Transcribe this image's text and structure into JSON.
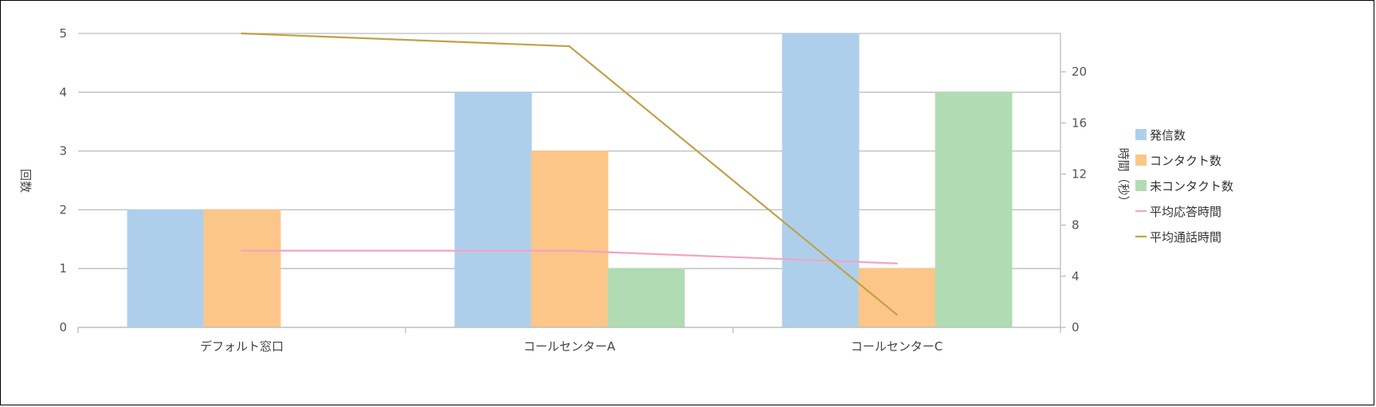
{
  "chart_data": {
    "type": "bar",
    "categories": [
      "デフォルト窓口",
      "コールセンターA",
      "コールセンターC"
    ],
    "series": [
      {
        "name": "発信数",
        "kind": "bar",
        "axis": "left",
        "color": "#aecfeb",
        "values": [
          2,
          4,
          5
        ]
      },
      {
        "name": "コンタクト数",
        "kind": "bar",
        "axis": "left",
        "color": "#fcc688",
        "values": [
          2,
          3,
          1
        ]
      },
      {
        "name": "未コンタクト数",
        "kind": "bar",
        "axis": "left",
        "color": "#b1dbb3",
        "values": [
          0,
          1,
          4
        ]
      },
      {
        "name": "平均応答時間",
        "kind": "line",
        "axis": "right",
        "color": "#f3a4c3",
        "values": [
          6,
          6,
          5
        ]
      },
      {
        "name": "平均通話時間",
        "kind": "line",
        "axis": "right",
        "color": "#bfa24a",
        "values": [
          23,
          22,
          1
        ]
      }
    ],
    "ylabel": "回数",
    "y2label": "時間（秒）",
    "ylim": [
      0,
      5
    ],
    "y2lim": [
      0,
      23
    ],
    "yticks": [
      0,
      1,
      2,
      3,
      4,
      5
    ],
    "y2ticks": [
      0,
      4,
      8,
      12,
      16,
      20
    ],
    "grid": true,
    "legend": "right"
  }
}
